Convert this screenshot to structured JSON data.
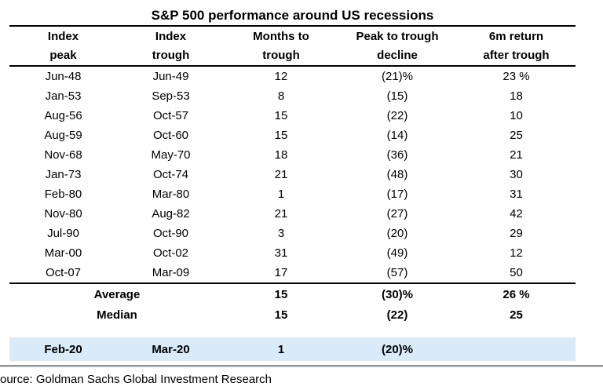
{
  "title": "S&P 500 performance around US recessions",
  "table": {
    "headers": [
      {
        "line1": "Index",
        "line2": "peak"
      },
      {
        "line1": "Index",
        "line2": "trough"
      },
      {
        "line1": "Months to",
        "line2": "trough"
      },
      {
        "line1": "Peak to trough",
        "line2": "decline"
      },
      {
        "line1": "6m return",
        "line2": "after trough"
      }
    ],
    "rows": [
      [
        "Jun-48",
        "Jun-49",
        "12",
        "(21)%",
        "23 %"
      ],
      [
        "Jan-53",
        "Sep-53",
        "8",
        "(15)",
        "18"
      ],
      [
        "Aug-56",
        "Oct-57",
        "15",
        "(22)",
        "10"
      ],
      [
        "Aug-59",
        "Oct-60",
        "15",
        "(14)",
        "25"
      ],
      [
        "Nov-68",
        "May-70",
        "18",
        "(36)",
        "21"
      ],
      [
        "Jan-73",
        "Oct-74",
        "21",
        "(48)",
        "30"
      ],
      [
        "Feb-80",
        "Mar-80",
        "1",
        "(17)",
        "31"
      ],
      [
        "Nov-80",
        "Aug-82",
        "21",
        "(27)",
        "42"
      ],
      [
        "Jul-90",
        "Oct-90",
        "3",
        "(20)",
        "29"
      ],
      [
        "Mar-00",
        "Oct-02",
        "31",
        "(49)",
        "12"
      ],
      [
        "Oct-07",
        "Mar-09",
        "17",
        "(57)",
        "50"
      ]
    ],
    "summary_rows": [
      {
        "label": "Average",
        "months_to_trough": "15",
        "decline": "(30)%",
        "return_6m": "26 %"
      },
      {
        "label": "Median",
        "months_to_trough": "15",
        "decline": "(22)",
        "return_6m": "25"
      }
    ],
    "highlight_row": {
      "peak": "Feb-20",
      "trough": "Mar-20",
      "months_to_trough": "1",
      "decline": "(20)%",
      "return_6m": ""
    }
  },
  "source_line": "ource: Goldman Sachs Global Investment Research",
  "colors": {
    "highlight_bg": "#d9eaf8",
    "rule": "#000000",
    "bottom_rule": "#8f8f8f",
    "text": "#000000"
  },
  "chart_data": {
    "type": "table",
    "title": "S&P 500 performance around US recessions",
    "columns": [
      "Index peak",
      "Index trough",
      "Months to trough",
      "Peak to trough decline",
      "6m return after trough"
    ],
    "rows": [
      [
        "Jun-48",
        "Jun-49",
        12,
        -21,
        23
      ],
      [
        "Jan-53",
        "Sep-53",
        8,
        -15,
        18
      ],
      [
        "Aug-56",
        "Oct-57",
        15,
        -22,
        10
      ],
      [
        "Aug-59",
        "Oct-60",
        15,
        -14,
        25
      ],
      [
        "Nov-68",
        "May-70",
        18,
        -36,
        21
      ],
      [
        "Jan-73",
        "Oct-74",
        21,
        -48,
        30
      ],
      [
        "Feb-80",
        "Mar-80",
        1,
        -17,
        31
      ],
      [
        "Nov-80",
        "Aug-82",
        21,
        -27,
        42
      ],
      [
        "Jul-90",
        "Oct-90",
        3,
        -20,
        29
      ],
      [
        "Mar-00",
        "Oct-02",
        31,
        -49,
        12
      ],
      [
        "Oct-07",
        "Mar-09",
        17,
        -57,
        50
      ]
    ],
    "average": {
      "months_to_trough": 15,
      "peak_to_trough_decline_pct": -30,
      "return_6m_pct": 26
    },
    "median": {
      "months_to_trough": 15,
      "peak_to_trough_decline_pct": -22,
      "return_6m_pct": 25
    },
    "highlighted_row": {
      "index_peak": "Feb-20",
      "index_trough": "Mar-20",
      "months_to_trough": 1,
      "peak_to_trough_decline_pct": -20,
      "return_6m_pct": null
    },
    "units": "percent, parentheses denote negative values"
  }
}
